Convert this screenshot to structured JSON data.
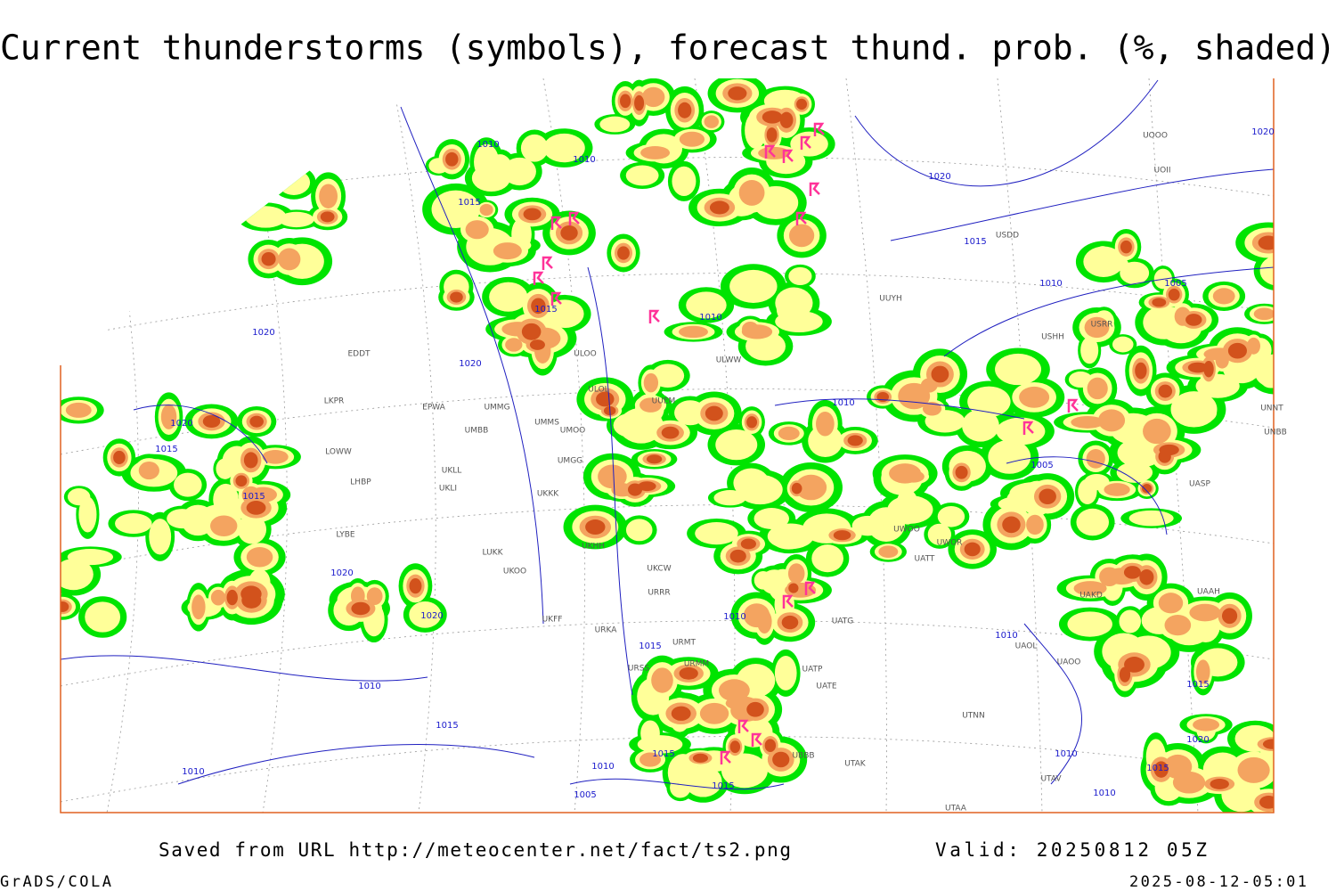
{
  "title": "Current thunderstorms (symbols), forecast thund. prob. (%, shaded)",
  "footer": {
    "saved_from": "Saved from URL http://meteocenter.net/fact/ts2.png",
    "valid": "Valid: 20250812 05Z",
    "software": "GrADS/COLA",
    "timestamp": "2025-08-12-05:01"
  },
  "stations": [
    "EDDT",
    "EPWA",
    "LKPR",
    "UMMG",
    "UMBB",
    "UMMS",
    "UMOO",
    "ULOL",
    "ULOO",
    "UUEM",
    "LOWW",
    "LHBP",
    "UKLL",
    "UKLI",
    "UKKK",
    "UMGG",
    "LYBE",
    "LUKK",
    "UKHH",
    "UKOO",
    "UKCW",
    "URRR",
    "UKFF",
    "URKA",
    "URMT",
    "URSS",
    "URMM",
    "UATG",
    "UATP",
    "UATE",
    "UTNN",
    "UBBB",
    "UTAK",
    "UTAV",
    "UTAA",
    "UAOL",
    "UAOO",
    "UAKD",
    "UASP",
    "UAAH",
    "UNNT",
    "UNBB",
    "USRR",
    "USHH",
    "USDD",
    "UOOO",
    "UOII",
    "UUYH",
    "ULWW",
    "UWOO",
    "UWOR",
    "UATT"
  ],
  "isobar_labels": [
    1010,
    1010,
    1015,
    1015,
    1020,
    1020,
    1010,
    1020,
    1015,
    1010,
    1005,
    1020,
    1010,
    1005,
    1020,
    1015,
    1015,
    1020,
    1020,
    1015,
    1010,
    1010,
    1015,
    1010,
    1010,
    1015,
    1015,
    1005,
    1010,
    1010,
    1010,
    1015,
    1020,
    1015
  ]
}
